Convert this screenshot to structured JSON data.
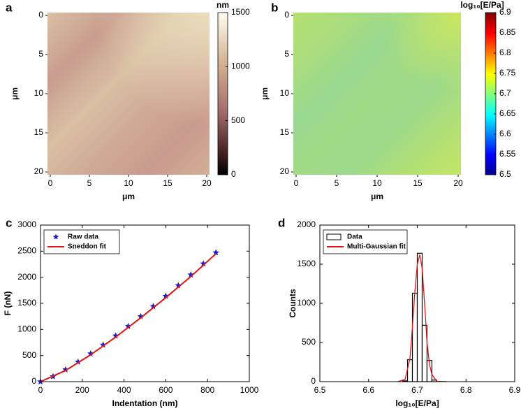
{
  "chart_data": [
    {
      "type": "heatmap",
      "label": "a",
      "xlabel": "μm",
      "ylabel": "μm",
      "xlim": [
        0,
        20
      ],
      "ylim": [
        20,
        0
      ],
      "xticks": [
        0,
        5,
        10,
        15,
        20
      ],
      "yticks": [
        0,
        5,
        10,
        15,
        20
      ],
      "colorbar": {
        "label": "nm",
        "lim": [
          0,
          1500
        ],
        "ticks": [
          0,
          500,
          1000,
          1500
        ]
      }
    },
    {
      "type": "heatmap",
      "label": "b",
      "xlabel": "μm",
      "ylabel": "μm",
      "xlim": [
        0,
        20
      ],
      "ylim": [
        20,
        0
      ],
      "xticks": [
        0,
        5,
        10,
        15,
        20
      ],
      "yticks": [
        0,
        5,
        10,
        15,
        20
      ],
      "colorbar": {
        "label": "log₁₀[E/Pa]",
        "lim": [
          6.5,
          6.9
        ],
        "ticks": [
          6.5,
          6.55,
          6.6,
          6.65,
          6.7,
          6.75,
          6.8,
          6.85,
          6.9
        ]
      }
    },
    {
      "type": "line",
      "label": "c",
      "xlabel": "Indentation (nm)",
      "ylabel": "F (nN)",
      "xlim": [
        0,
        1000
      ],
      "ylim": [
        0,
        3000
      ],
      "xticks": [
        0,
        200,
        400,
        600,
        800,
        1000
      ],
      "yticks": [
        0,
        500,
        1000,
        1500,
        2000,
        2500,
        3000
      ],
      "legend": "upper left",
      "series": [
        {
          "name": "Raw data",
          "color": "#1a1ad6",
          "marker": "star",
          "x": [
            0,
            60,
            120,
            180,
            240,
            300,
            360,
            420,
            480,
            540,
            600,
            660,
            720,
            780,
            840
          ],
          "values": [
            0,
            99,
            230,
            378,
            536,
            704,
            879,
            1061,
            1249,
            1442,
            1640,
            1842,
            2048,
            2259,
            2472
          ]
        },
        {
          "name": "Sneddon fit",
          "color": "#e01515",
          "x": [
            0,
            120,
            240,
            360,
            480,
            600,
            720,
            840
          ],
          "values": [
            0,
            215,
            515,
            855,
            1225,
            1610,
            2015,
            2450
          ]
        }
      ]
    },
    {
      "type": "histogram",
      "label": "d",
      "xlabel": "log₁₀[E/Pa]",
      "ylabel": "Counts",
      "xlim": [
        6.5,
        6.9
      ],
      "ylim": [
        0,
        2000
      ],
      "xticks": [
        6.5,
        6.6,
        6.7,
        6.8,
        6.9
      ],
      "yticks": [
        0,
        500,
        1000,
        1500,
        2000
      ],
      "legend": "upper left",
      "series": [
        {
          "name": "Data",
          "color": "#000000",
          "bins": [
            6.67,
            6.68,
            6.69,
            6.7,
            6.71,
            6.72,
            6.73,
            6.74
          ],
          "values": [
            10,
            280,
            1130,
            1640,
            720,
            270,
            20
          ]
        },
        {
          "name": "Multi-Gaussian fit",
          "color": "#e01515",
          "x": [
            6.66,
            6.675,
            6.685,
            6.69,
            6.695,
            6.7,
            6.705,
            6.71,
            6.715,
            6.72,
            6.725,
            6.73,
            6.74,
            6.76
          ],
          "values": [
            0,
            30,
            300,
            700,
            1150,
            1500,
            1620,
            1450,
            1000,
            500,
            220,
            90,
            5,
            0
          ]
        }
      ]
    }
  ]
}
